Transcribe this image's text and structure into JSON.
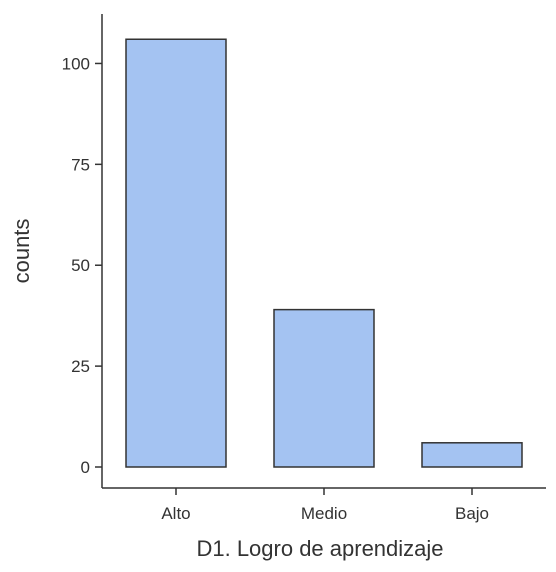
{
  "chart_data": {
    "type": "bar",
    "categories": [
      "Alto",
      "Medio",
      "Bajo"
    ],
    "values": [
      106,
      39,
      6
    ],
    "xlabel": "D1. Logro de aprendizaje",
    "ylabel": "counts",
    "ylim": [
      0,
      113
    ],
    "yticks": [
      0,
      25,
      50,
      75,
      100
    ],
    "grid": false,
    "legend": "none",
    "colors": {
      "bar_fill": "#A4C3F2",
      "bar_stroke": "#333333",
      "axis": "#333333",
      "text": "#333333"
    }
  }
}
